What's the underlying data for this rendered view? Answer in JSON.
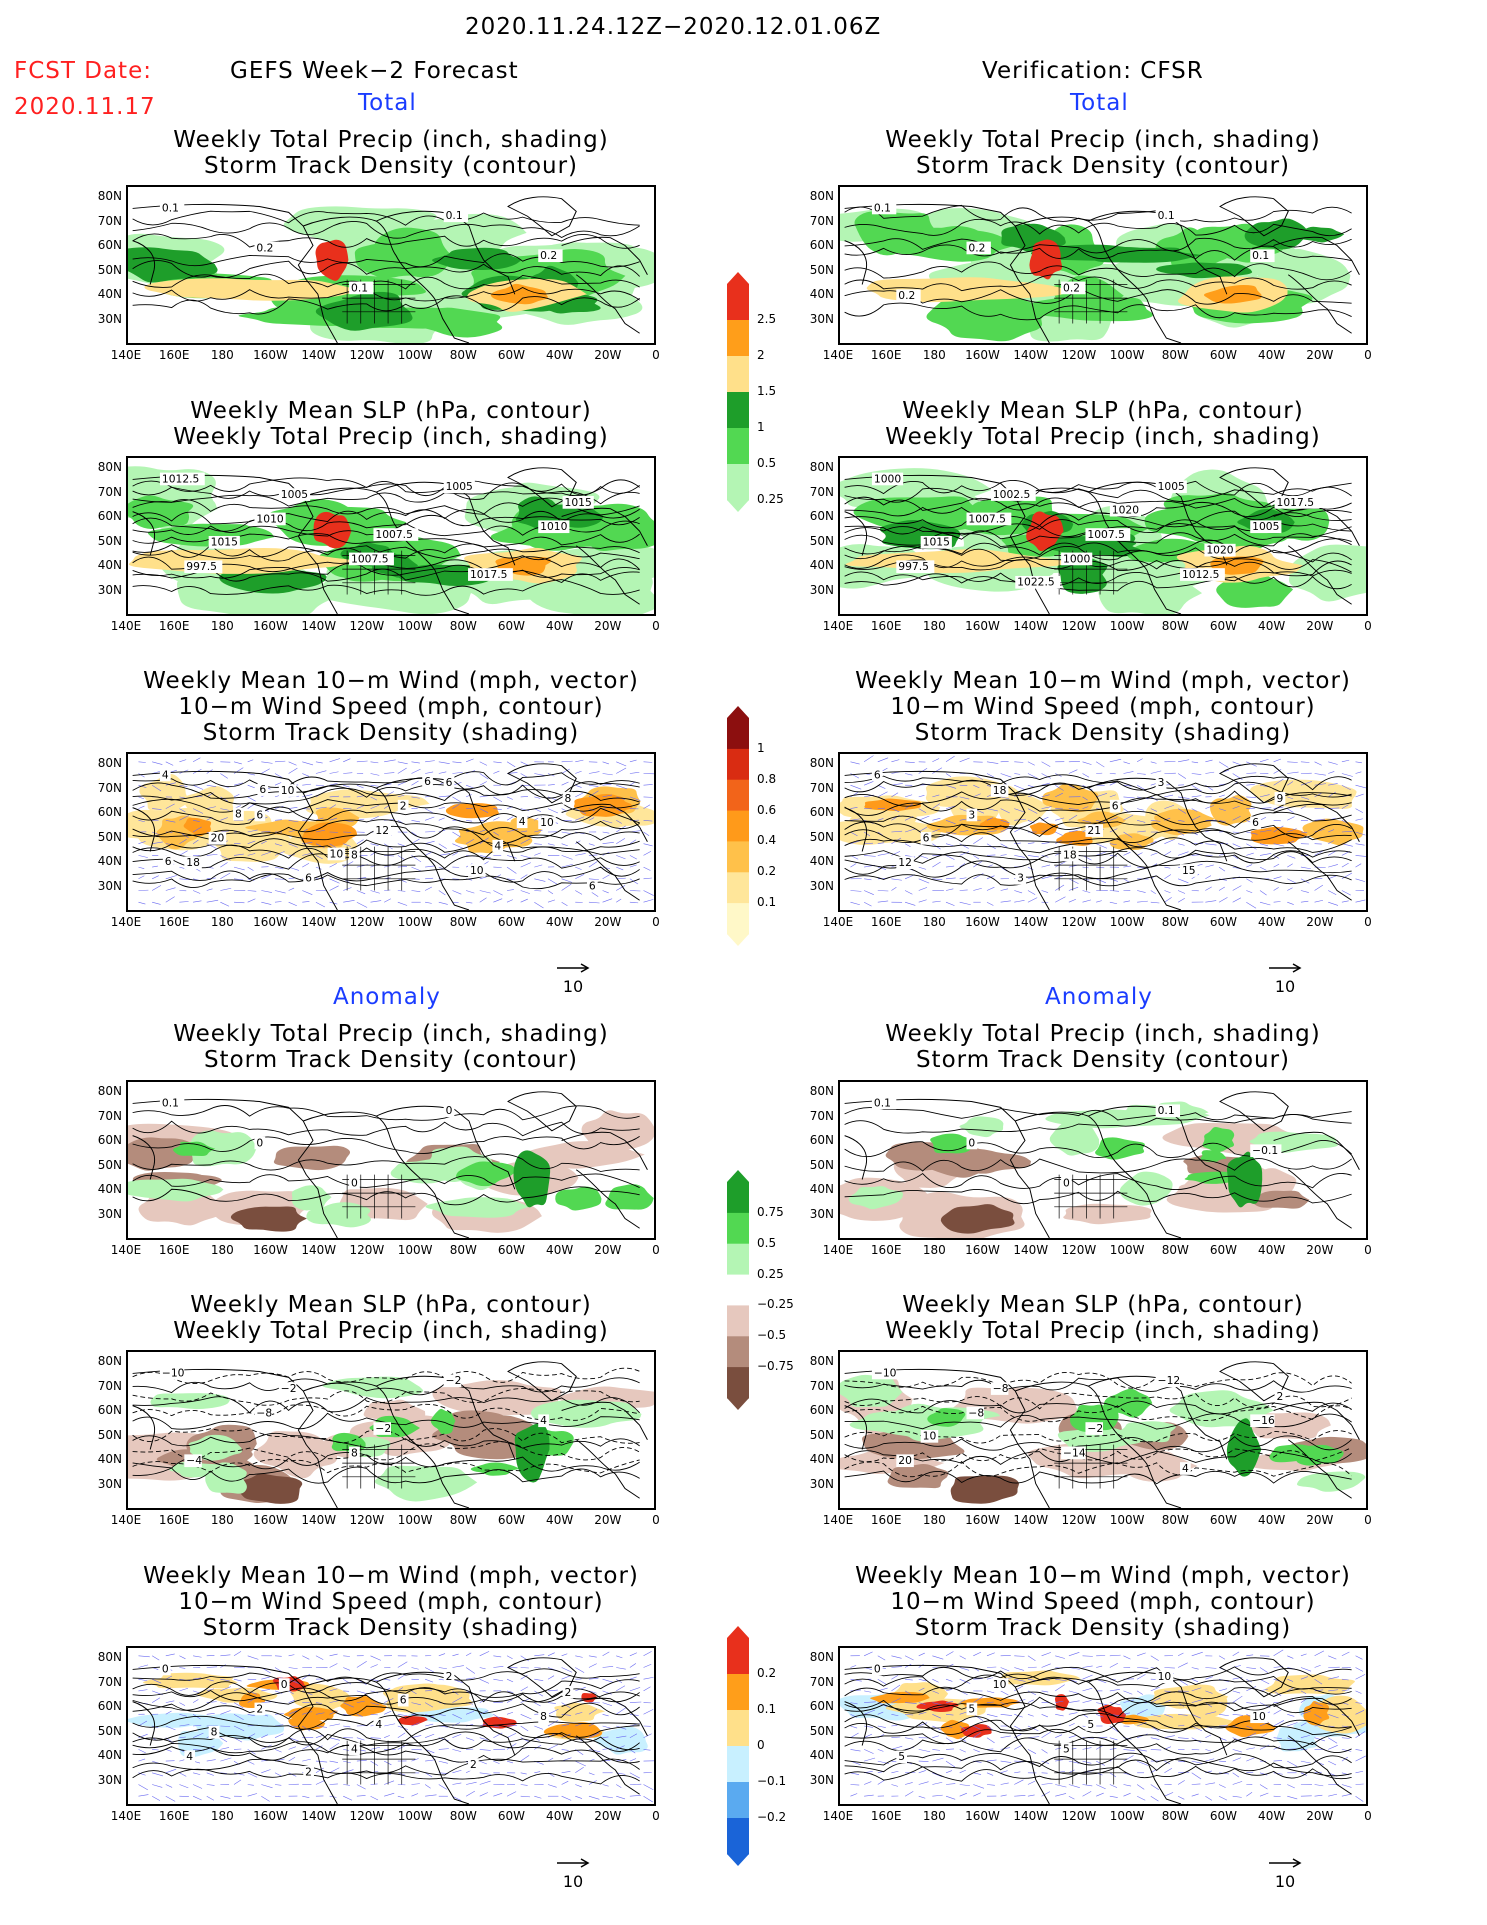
{
  "header": {
    "period": "2020.11.24.12Z−2020.12.01.06Z",
    "fcst_label": "FCST Date:",
    "fcst_date": "2020.11.17",
    "left_title": "GEFS Week−2 Forecast",
    "right_title": "Verification: CFSR",
    "section_total": "Total",
    "section_anomaly": "Anomaly"
  },
  "titles": {
    "precip_storm": "Weekly Total Precip (inch, shading)\nStorm Track Density (contour)",
    "slp_precip": "Weekly Mean SLP (hPa, contour)\nWeekly Total Precip (inch, shading)",
    "wind": "Weekly Mean 10−m Wind (mph, vector)\n10−m Wind Speed (mph, contour)\nStorm Track Density (shading)"
  },
  "axes": {
    "lat": [
      "80N",
      "70N",
      "60N",
      "50N",
      "40N",
      "30N"
    ],
    "lon": [
      "140E",
      "160E",
      "180",
      "160W",
      "140W",
      "120W",
      "100W",
      "80W",
      "60W",
      "40W",
      "20W",
      "0"
    ]
  },
  "vector_ref": "10",
  "colorbars": {
    "precip_total": {
      "labels": [
        "2.5",
        "2",
        "1.5",
        "1",
        "0.5",
        "0.25"
      ],
      "colors": [
        "#e8301c",
        "#ff9e1a",
        "#ffe08a",
        "#1e9e2a",
        "#52d852",
        "#b4f5b4"
      ]
    },
    "storm_total": {
      "labels": [
        "1",
        "0.8",
        "0.6",
        "0.4",
        "0.2",
        "0.1"
      ],
      "colors": [
        "#8c0f0f",
        "#d92c12",
        "#f2641a",
        "#ff9a1a",
        "#ffc14a",
        "#ffe69a",
        "#fff8c8"
      ]
    },
    "precip_anom": {
      "labels": [
        "0.75",
        "0.5",
        "0.25",
        "−0.25",
        "−0.5",
        "−0.75"
      ],
      "colors": [
        "#1e9e2a",
        "#52d852",
        "#b4f5b4",
        "#ffffff",
        "#e6c8be",
        "#b48c7c",
        "#7a4e3e"
      ]
    },
    "storm_anom": {
      "labels": [
        "0.2",
        "0.1",
        "0",
        "−0.1",
        "−0.2"
      ],
      "colors": [
        "#e8301c",
        "#ff9e1a",
        "#ffe08a",
        "#c8f0ff",
        "#5aaaf0",
        "#1a64d8"
      ]
    }
  },
  "contour_labels": {
    "p1": [
      "0.1",
      "0.2",
      "0.1",
      "0.1",
      "0.2"
    ],
    "p2": [
      "0.1",
      "0.2",
      "0.2",
      "0.1",
      "0.1",
      "0.2"
    ],
    "p3": [
      "1012.5",
      "1010",
      "1007.5",
      "1005",
      "1010",
      "997.5",
      "1005",
      "1007.5",
      "1017.5",
      "1015",
      "1015"
    ],
    "p4": [
      "1000",
      "1007.5",
      "1000",
      "1005",
      "1005",
      "997.5",
      "1002.5",
      "1007.5",
      "1012.5",
      "1017.5",
      "1015",
      "1022.5",
      "1020",
      "1020"
    ],
    "p5": [
      "4",
      "6",
      "8",
      "6",
      "10",
      "18",
      "10",
      "12",
      "10",
      "8",
      "20",
      "6",
      "2",
      "4",
      "6",
      "8",
      "10",
      "6",
      "4",
      "6",
      "6"
    ],
    "p6": [
      "6",
      "3",
      "18",
      "3",
      "6",
      "12",
      "18",
      "21",
      "15",
      "9",
      "6",
      "3",
      "6"
    ],
    "p7": [
      "0.1",
      "0",
      "0",
      "0"
    ],
    "p8": [
      "0.1",
      "0",
      "0",
      "0.1",
      "−0.1"
    ],
    "p9": [
      "−10",
      "−8",
      "8",
      "−2",
      "4",
      "−4",
      "−2",
      "−2"
    ],
    "p10": [
      "−10",
      "−8",
      "−14",
      "−12",
      "−16",
      "20",
      "−8",
      "−2",
      "4",
      "2",
      "10"
    ],
    "p11": [
      "0",
      "2",
      "4",
      "2",
      "8",
      "4",
      "0",
      "4",
      "2",
      "2",
      "8",
      "2",
      "6"
    ],
    "p12": [
      "0",
      "5",
      "5",
      "10",
      "10",
      "5",
      "10",
      "5"
    ]
  }
}
